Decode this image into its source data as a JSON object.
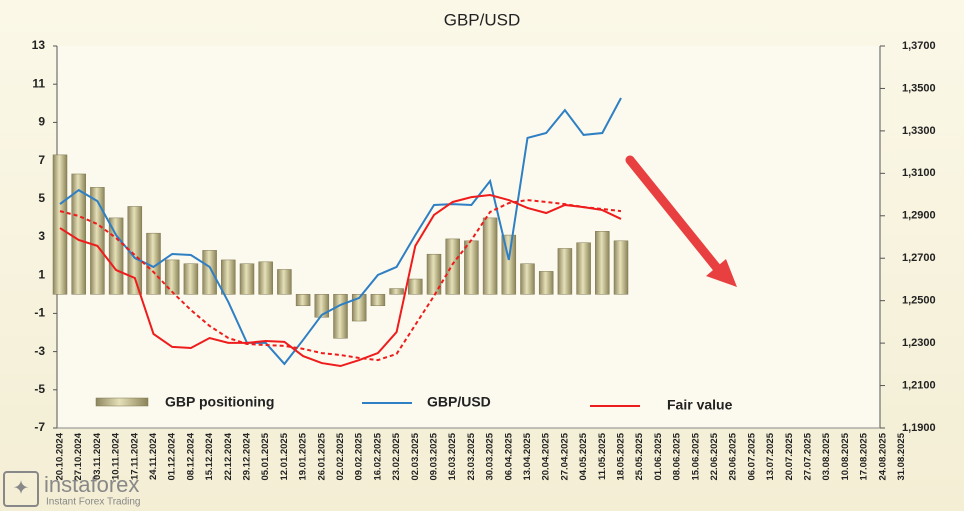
{
  "chart_data": {
    "type": "bar_line",
    "title": "GBP/USD",
    "categories": [
      "20.10.2024",
      "27.10.2024",
      "03.11.2024",
      "10.11.2024",
      "17.11.2024",
      "24.11.2024",
      "01.12.2024",
      "08.12.2024",
      "15.12.2024",
      "22.12.2024",
      "29.12.2024",
      "05.01.2025",
      "12.01.2025",
      "19.01.2025",
      "26.01.2025",
      "02.02.2025",
      "09.02.2025",
      "16.02.2025",
      "23.02.2025",
      "02.03.2025",
      "09.03.2025",
      "16.03.2025",
      "23.03.2025",
      "30.03.2025",
      "06.04.2025",
      "13.04.2025",
      "20.04.2025",
      "27.04.2025",
      "04.05.2025",
      "11.05.2025",
      "18.05.2025",
      "25.05.2025",
      "01.06.2025",
      "08.06.2025",
      "15.06.2025",
      "22.06.2025",
      "29.06.2025",
      "06.07.2025",
      "13.07.2025",
      "20.07.2025",
      "27.07.2025",
      "03.08.2025",
      "10.08.2025",
      "17.08.2025",
      "24.08.2025",
      "31.08.2025"
    ],
    "series": [
      {
        "name": "GBP positioning",
        "kind": "bar",
        "color": "#c4bc8c",
        "values": [
          7.3,
          6.3,
          5.6,
          4.0,
          4.6,
          3.2,
          1.8,
          1.6,
          2.3,
          1.8,
          1.6,
          1.7,
          1.3,
          -0.6,
          -1.2,
          -2.3,
          -1.4,
          -0.6,
          0.3,
          0.8,
          2.1,
          2.9,
          2.8,
          4.0,
          3.1,
          1.6,
          1.2,
          2.4,
          2.7,
          3.3,
          2.8,
          null,
          null,
          null,
          null,
          null,
          null,
          null,
          null,
          null,
          null,
          null,
          null,
          null,
          null,
          null
        ]
      },
      {
        "name": "GBP/USD",
        "kind": "line",
        "axis": "y2",
        "color": "#2e7fc4",
        "values": [
          1.2955,
          1.3021,
          1.2969,
          1.2809,
          1.2701,
          1.2659,
          1.272,
          1.2715,
          1.2659,
          1.2494,
          1.2301,
          1.2301,
          1.2202,
          1.2315,
          1.2433,
          1.248,
          1.2513,
          1.2621,
          1.2659,
          1.2809,
          1.2951,
          1.2955,
          1.2951,
          1.3064,
          1.2692,
          1.3267,
          1.329,
          1.3398,
          1.3281,
          1.329,
          1.3455,
          null,
          null,
          null,
          null,
          null,
          null,
          null,
          null,
          null,
          null,
          null,
          null,
          null,
          null,
          null
        ]
      },
      {
        "name": "Fair value",
        "kind": "line",
        "axis": "y2",
        "color": "#ee1c1c",
        "values": [
          1.2842,
          1.2786,
          1.2758,
          1.2644,
          1.2607,
          1.2343,
          1.2282,
          1.2277,
          1.2324,
          1.2301,
          1.2301,
          1.231,
          1.2306,
          1.2239,
          1.2206,
          1.2192,
          1.222,
          1.2253,
          1.2352,
          1.2758,
          1.2904,
          1.2965,
          1.2988,
          1.2998,
          1.2974,
          1.2937,
          1.2913,
          1.2951,
          1.2941,
          1.2927,
          1.2885,
          null,
          null,
          null,
          null,
          null,
          null,
          null,
          null,
          null,
          null,
          null,
          null,
          null,
          null,
          null
        ]
      },
      {
        "kind": "line",
        "axis": "y2",
        "color": "#ee1c1c",
        "dashed": true,
        "values": [
          1.2922,
          1.2899,
          1.2861,
          1.2795,
          1.2715,
          1.2635,
          1.2541,
          1.2456,
          1.2381,
          1.2324,
          1.2296,
          1.2291,
          1.2287,
          1.2273,
          1.2253,
          1.2244,
          1.223,
          1.222,
          1.2249,
          1.2386,
          1.2522,
          1.2673,
          1.2786,
          1.2918,
          1.296,
          1.2974,
          1.2965,
          1.2955,
          1.2941,
          1.2932,
          1.2922,
          null,
          null,
          null,
          null,
          null,
          null,
          null,
          null,
          null,
          null,
          null,
          null,
          null,
          null,
          null
        ]
      }
    ],
    "ylim": [
      -7,
      13
    ],
    "yticks": [
      13,
      11,
      9,
      7,
      5,
      3,
      1,
      -1,
      -3,
      -5,
      -7
    ],
    "y2lim": [
      1.19,
      1.37
    ],
    "y2ticks": [
      {
        "value": 1.37,
        "label": "1,3700"
      },
      {
        "value": 1.35,
        "label": "1,3500"
      },
      {
        "value": 1.33,
        "label": "1,3300"
      },
      {
        "value": 1.31,
        "label": "1,3100"
      },
      {
        "value": 1.29,
        "label": "1,2900"
      },
      {
        "value": 1.27,
        "label": "1,2700"
      },
      {
        "value": 1.25,
        "label": "1,2500"
      },
      {
        "value": 1.23,
        "label": "1,2300"
      },
      {
        "value": 1.21,
        "label": "1,2100"
      },
      {
        "value": 1.19,
        "label": "1,1900"
      }
    ],
    "watermark": {
      "brand": "instaforex",
      "tagline": "Instant Forex Trading"
    }
  }
}
